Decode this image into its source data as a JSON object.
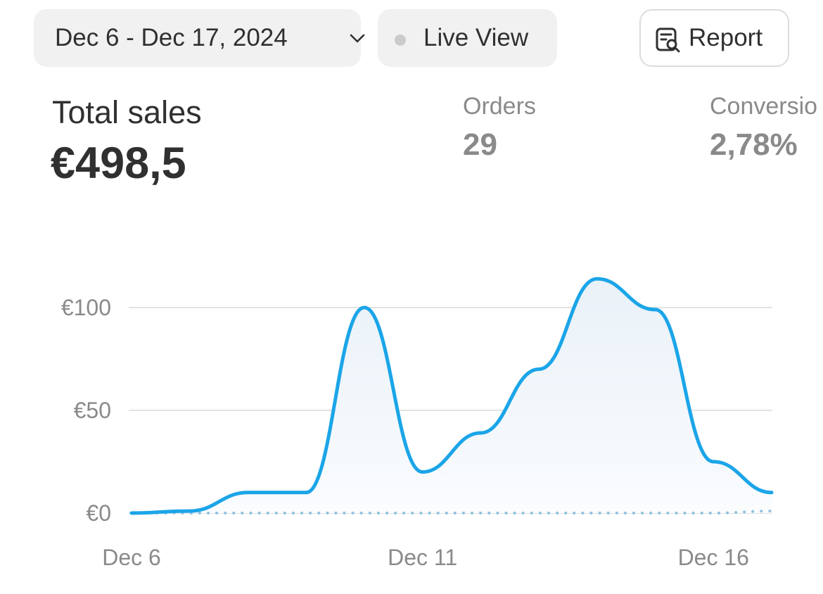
{
  "toolbar": {
    "date_range": "Dec 6 - Dec 17, 2024",
    "live_view": "Live View",
    "report": "Report"
  },
  "metrics": {
    "total_sales_label": "Total sales",
    "total_sales_value": "€498,5",
    "orders_label": "Orders",
    "orders_value": "29",
    "conversion_label": "Conversio",
    "conversion_value": "2,78%"
  },
  "colors": {
    "line": "#1ba5e8",
    "grid": "#e3e3e3",
    "comparison_dots": "#8fc2dd"
  },
  "chart_data": {
    "type": "line",
    "x": [
      "Dec 6",
      "Dec 7",
      "Dec 8",
      "Dec 9",
      "Dec 10",
      "Dec 11",
      "Dec 12",
      "Dec 13",
      "Dec 14",
      "Dec 15",
      "Dec 16",
      "Dec 17"
    ],
    "series": [
      {
        "values": [
          0,
          1,
          10,
          10,
          100,
          20,
          39,
          70,
          114,
          99,
          25,
          10
        ]
      },
      {
        "values": [
          0,
          0,
          0,
          0,
          0,
          0,
          0,
          0,
          0,
          0,
          0,
          1
        ]
      }
    ],
    "y_ticks": [
      "€0",
      "€50",
      "€100"
    ],
    "x_tick_labels": [
      "Dec 6",
      "Dec 11",
      "Dec 16"
    ],
    "ylim": [
      0,
      120
    ],
    "grid": true
  }
}
